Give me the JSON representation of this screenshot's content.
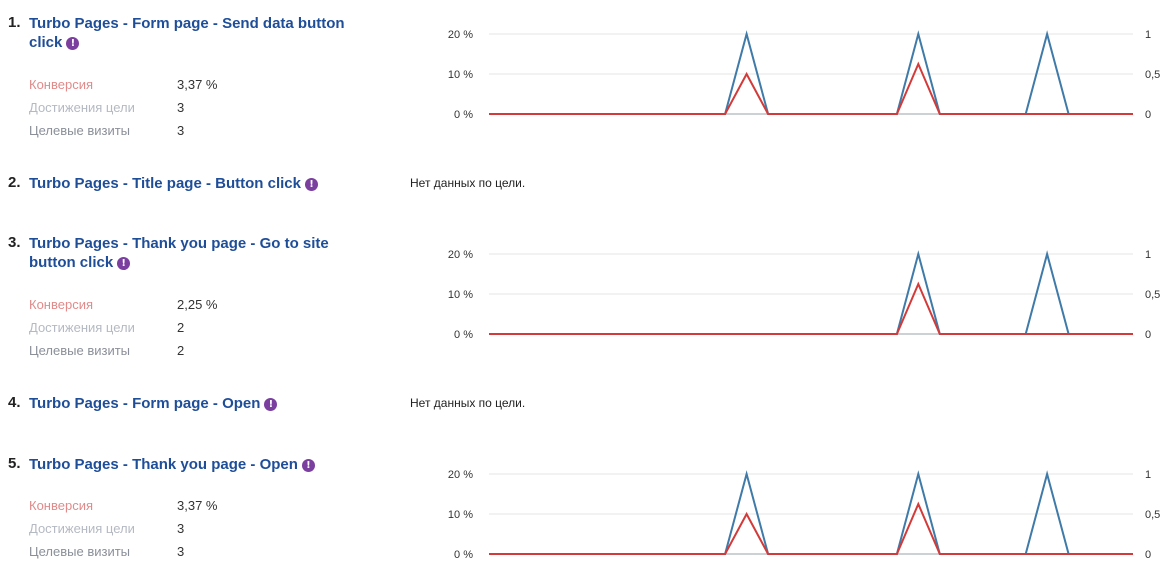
{
  "no_data_text": "Нет данных по цели.",
  "goals": [
    {
      "num": "1.",
      "title": "Turbo Pages - Form page - Send data button click",
      "has_data": true,
      "metrics": [
        {
          "label": "Конверсия",
          "value": "3,37 %"
        },
        {
          "label": "Достижения цели",
          "value": "3"
        },
        {
          "label": "Целевые визиты",
          "value": "3"
        }
      ]
    },
    {
      "num": "2.",
      "title": "Turbo Pages - Title page - Button click",
      "has_data": false
    },
    {
      "num": "3.",
      "title": "Turbo Pages - Thank you page - Go to site button click",
      "has_data": true,
      "metrics": [
        {
          "label": "Конверсия",
          "value": "2,25 %"
        },
        {
          "label": "Достижения цели",
          "value": "2"
        },
        {
          "label": "Целевые визиты",
          "value": "2"
        }
      ]
    },
    {
      "num": "4.",
      "title": "Turbo Pages - Form page - Open",
      "has_data": false
    },
    {
      "num": "5.",
      "title": "Turbo Pages - Thank you page - Open",
      "has_data": true,
      "metrics": [
        {
          "label": "Конверсия",
          "value": "3,37 %"
        },
        {
          "label": "Достижения цели",
          "value": "3"
        },
        {
          "label": "Целевые визиты",
          "value": "3"
        }
      ]
    }
  ],
  "colors": {
    "conversion": "#d33a3a",
    "visits": "#3f7aa8",
    "title": "#1f4e99",
    "warn": "#7b3fa0"
  },
  "chart_data": [
    {
      "type": "line",
      "goal": 1,
      "left_axis": {
        "ticks": [
          "20 %",
          "10 %",
          "0 %"
        ],
        "ylim": [
          0,
          20
        ]
      },
      "right_axis": {
        "ticks": [
          "1",
          "0,5",
          "0"
        ],
        "ylim": [
          0,
          1
        ]
      },
      "n_points": 31,
      "grid": true,
      "series": [
        {
          "axis": "left",
          "values": [
            0,
            0,
            0,
            0,
            0,
            0,
            0,
            0,
            0,
            0,
            0,
            0,
            10,
            0,
            0,
            0,
            0,
            0,
            0,
            0,
            12.5,
            0,
            0,
            0,
            0,
            0,
            0,
            0,
            0,
            0,
            0
          ]
        },
        {
          "axis": "right",
          "values": [
            0,
            0,
            0,
            0,
            0,
            0,
            0,
            0,
            0,
            0,
            0,
            0,
            1,
            0,
            0,
            0,
            0,
            0,
            0,
            0,
            1,
            0,
            0,
            0,
            0,
            0,
            1,
            0,
            0,
            0,
            0
          ]
        }
      ]
    },
    {
      "type": "line",
      "goal": 3,
      "left_axis": {
        "ticks": [
          "20 %",
          "10 %",
          "0 %"
        ],
        "ylim": [
          0,
          20
        ]
      },
      "right_axis": {
        "ticks": [
          "1",
          "0,5",
          "0"
        ],
        "ylim": [
          0,
          1
        ]
      },
      "n_points": 31,
      "grid": true,
      "series": [
        {
          "axis": "left",
          "values": [
            0,
            0,
            0,
            0,
            0,
            0,
            0,
            0,
            0,
            0,
            0,
            0,
            0,
            0,
            0,
            0,
            0,
            0,
            0,
            0,
            12.5,
            0,
            0,
            0,
            0,
            0,
            0,
            0,
            0,
            0,
            0
          ]
        },
        {
          "axis": "right",
          "values": [
            0,
            0,
            0,
            0,
            0,
            0,
            0,
            0,
            0,
            0,
            0,
            0,
            0,
            0,
            0,
            0,
            0,
            0,
            0,
            0,
            1,
            0,
            0,
            0,
            0,
            0,
            1,
            0,
            0,
            0,
            0
          ]
        }
      ]
    },
    {
      "type": "line",
      "goal": 5,
      "left_axis": {
        "ticks": [
          "20 %",
          "10 %",
          "0 %"
        ],
        "ylim": [
          0,
          20
        ]
      },
      "right_axis": {
        "ticks": [
          "1",
          "0,5",
          "0"
        ],
        "ylim": [
          0,
          1
        ]
      },
      "n_points": 31,
      "grid": true,
      "series": [
        {
          "axis": "left",
          "values": [
            0,
            0,
            0,
            0,
            0,
            0,
            0,
            0,
            0,
            0,
            0,
            0,
            10,
            0,
            0,
            0,
            0,
            0,
            0,
            0,
            12.5,
            0,
            0,
            0,
            0,
            0,
            0,
            0,
            0,
            0,
            0
          ]
        },
        {
          "axis": "right",
          "values": [
            0,
            0,
            0,
            0,
            0,
            0,
            0,
            0,
            0,
            0,
            0,
            0,
            1,
            0,
            0,
            0,
            0,
            0,
            0,
            0,
            1,
            0,
            0,
            0,
            0,
            0,
            1,
            0,
            0,
            0,
            0
          ]
        }
      ]
    }
  ]
}
